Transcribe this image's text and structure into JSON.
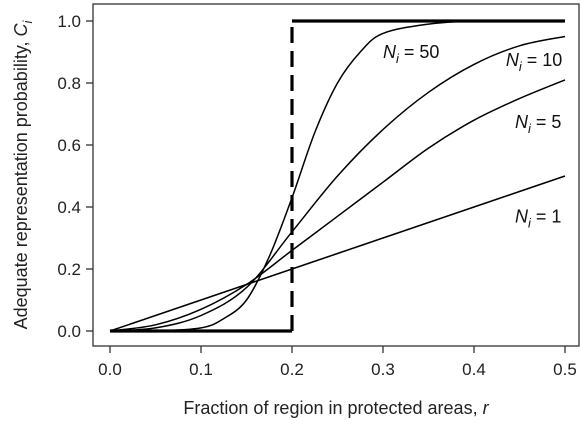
{
  "chart_data": {
    "type": "line",
    "xlabel": "Fraction of region in protected areas, ",
    "xlabel_var": "r",
    "ylabel": "Adequate representation probability, ",
    "ylabel_var": "C",
    "ylabel_sub": "i",
    "xlim": [
      0.0,
      0.5
    ],
    "ylim": [
      0.0,
      1.0
    ],
    "x_ticks": [
      "0.0",
      "0.1",
      "0.2",
      "0.3",
      "0.4",
      "0.5"
    ],
    "y_ticks": [
      "0.0",
      "0.2",
      "0.4",
      "0.6",
      "0.8",
      "1.0"
    ],
    "grid": false,
    "series": [
      {
        "name": "N = 1",
        "N": 1,
        "style": "solid-thin",
        "x": [
          0.0,
          0.05,
          0.1,
          0.15,
          0.2,
          0.25,
          0.3,
          0.35,
          0.4,
          0.45,
          0.5
        ],
        "y": [
          0.0,
          0.05,
          0.1,
          0.15,
          0.2,
          0.25,
          0.3,
          0.35,
          0.4,
          0.45,
          0.5
        ]
      },
      {
        "name": "N = 5",
        "N": 5,
        "style": "solid-thin",
        "x": [
          0.0,
          0.05,
          0.1,
          0.15,
          0.2,
          0.25,
          0.3,
          0.35,
          0.4,
          0.45,
          0.5
        ],
        "y": [
          0.0,
          0.02,
          0.07,
          0.15,
          0.26,
          0.37,
          0.48,
          0.59,
          0.68,
          0.75,
          0.81
        ]
      },
      {
        "name": "N = 10",
        "N": 10,
        "style": "solid-thin",
        "x": [
          0.0,
          0.05,
          0.1,
          0.15,
          0.2,
          0.25,
          0.3,
          0.35,
          0.4,
          0.45,
          0.5
        ],
        "y": [
          0.0,
          0.01,
          0.05,
          0.14,
          0.32,
          0.5,
          0.65,
          0.77,
          0.86,
          0.92,
          0.95
        ]
      },
      {
        "name": "N = 50",
        "N": 50,
        "style": "solid-thin",
        "x": [
          0.0,
          0.05,
          0.1,
          0.125,
          0.15,
          0.175,
          0.2,
          0.225,
          0.25,
          0.275,
          0.3,
          0.35,
          0.4,
          0.45,
          0.5
        ],
        "y": [
          0.0,
          0.0,
          0.01,
          0.04,
          0.1,
          0.24,
          0.43,
          0.64,
          0.8,
          0.9,
          0.96,
          0.99,
          1.0,
          1.0,
          1.0
        ]
      },
      {
        "name": "step",
        "style": "thick-step",
        "x": [
          0.0,
          0.2,
          0.2,
          0.5
        ],
        "y": [
          0.0,
          0.0,
          1.0,
          1.0
        ]
      }
    ],
    "annotations": [
      {
        "label": "N",
        "sub": "i",
        "rest": " = 50",
        "x": 0.3,
        "y": 0.88
      },
      {
        "label": "N",
        "sub": "i",
        "rest": " = 10",
        "x": 0.435,
        "y": 0.855
      },
      {
        "label": "N",
        "sub": "i",
        "rest": " = 5",
        "x": 0.445,
        "y": 0.655
      },
      {
        "label": "N",
        "sub": "i",
        "rest": " = 1",
        "x": 0.445,
        "y": 0.35
      }
    ],
    "colors": {
      "line": "#000000",
      "axis": "#333333",
      "background": "#ffffff"
    }
  }
}
